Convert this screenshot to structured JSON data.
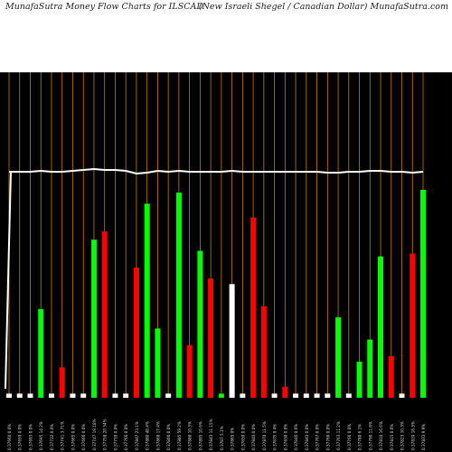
{
  "header": {
    "title_left": "MunafaSutra  Money  Flow  Charts for ILSCAD",
    "title_right": "(New  Israeli  Shegel / Canadian  Dollar) MunafaSutra.com"
  },
  "colors": {
    "background": "#000000",
    "up": "#00ff00",
    "down": "#ff0000",
    "neutral": "#ffffff",
    "grid": "#cc7a00",
    "flow_line": "#ffffff"
  },
  "chart_data": {
    "type": "bar",
    "grid": true,
    "ylim": [
      0,
      100
    ],
    "categories": [
      "0.37660 0.0%",
      "0.37659 0.0%",
      "0.37693 0.0%",
      "0.37695 14.2%",
      "0.37722 0.0%",
      "0.37741 3.71%",
      "0.37665 0.0%",
      "0.37666 0.0%",
      "0.37747 19.18%",
      "0.37758 20.34%",
      "0.37759 0.0%",
      "0.37766 0.0%",
      "0.37847 23.1%",
      "0.37880 48.4%",
      "0.37868 17.4%",
      "0.37800 0.0%",
      "0.37885 59.2%",
      "0.37888 10.3%",
      "0.37895 10.6%",
      "0.37843 11.15%",
      "0.3787 5.1%",
      "0.37865 0%",
      "0.37850 0.0%",
      "0.37840 0.0%",
      "0.37870 11.5%",
      "0.37875 9.4%",
      "0.37830 0.0%",
      "0.37846 0.6%",
      "0.37843 0.0%",
      "0.37767 0.0%",
      "0.37760 0.0%",
      "0.37763 11.2%",
      "0.37766 0.0%",
      "0.37780 6.1%",
      "0.37790 11.8%",
      "0.37810 16.6%",
      "0.37815 0.0%",
      "0.37823 10.3%",
      "0.37810 18.3%",
      "0.37833 9.9%"
    ],
    "bar_colors": [
      "w",
      "w",
      "w",
      "g",
      "w",
      "r",
      "w",
      "w",
      "g",
      "r",
      "w",
      "w",
      "r",
      "g",
      "g",
      "w",
      "g",
      "r",
      "g",
      "r",
      "g",
      "w",
      "w",
      "r",
      "r",
      "w",
      "r",
      "w",
      "w",
      "w",
      "w",
      "g",
      "w",
      "g",
      "g",
      "g",
      "r",
      "w",
      "r",
      "g"
    ],
    "values": [
      1.5,
      1.5,
      1.5,
      32,
      1.5,
      11,
      1.5,
      1.5,
      57,
      60,
      1.5,
      1.5,
      47,
      70,
      25,
      1.5,
      74,
      19,
      53,
      43,
      1.5,
      41,
      1.5,
      65,
      33,
      1.5,
      4,
      1.5,
      1.5,
      1.5,
      1.5,
      29,
      1.5,
      13,
      21,
      51,
      15,
      1.5,
      52,
      75
    ],
    "flow_line": [
      98,
      98,
      98,
      98.5,
      98,
      98,
      98.5,
      99,
      99.5,
      99,
      99,
      98.5,
      97,
      97.5,
      98.5,
      98,
      98.5,
      98,
      98,
      98,
      98,
      98.5,
      98,
      98,
      98,
      98,
      98,
      98,
      98,
      98,
      97.5,
      97.5,
      98,
      98,
      98.5,
      98.5,
      98,
      98,
      97.5,
      98
    ]
  }
}
